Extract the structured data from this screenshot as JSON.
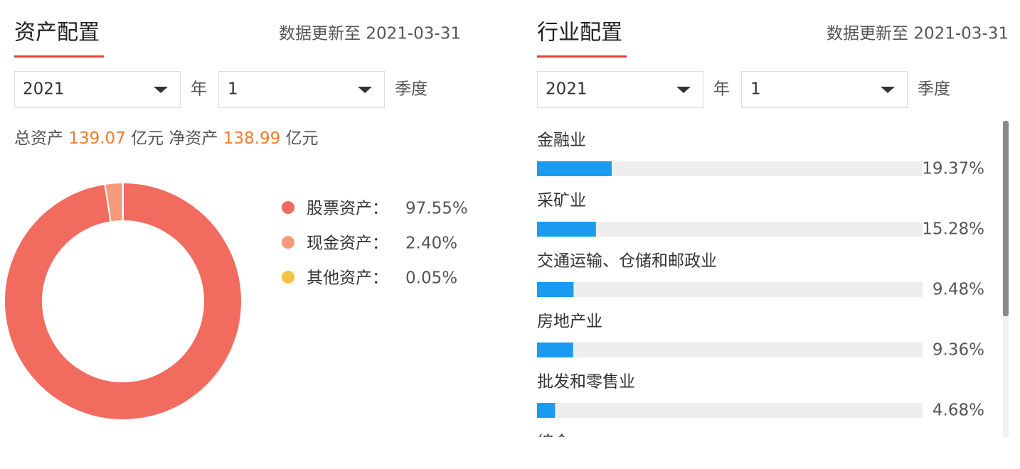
{
  "left": {
    "title": "资产配置",
    "update": "数据更新至 2021-03-31",
    "year": "2021",
    "year_unit": "年",
    "quarter": "1",
    "quarter_unit": "季度",
    "summary": {
      "total_label": "总资产",
      "total": "139.07",
      "total_unit": "亿元",
      "net_label": "净资产",
      "net": "138.99",
      "net_unit": "亿元"
    },
    "chart_data": {
      "type": "pie",
      "categories": [
        "股票资产：",
        "现金资产：",
        "其他资产："
      ],
      "values": [
        97.55,
        2.4,
        0.05
      ],
      "value_labels": [
        "97.55%",
        "2.40%",
        "0.05%"
      ],
      "colors": [
        "#f26b5f",
        "#f7997a",
        "#f5c242"
      ]
    }
  },
  "right": {
    "title": "行业配置",
    "update": "数据更新至 2021-03-31",
    "year": "2021",
    "year_unit": "年",
    "quarter": "1",
    "quarter_unit": "季度",
    "chart_data": {
      "type": "bar",
      "categories": [
        "金融业",
        "采矿业",
        "交通运输、仓储和邮政业",
        "房地产业",
        "批发和零售业",
        "综合"
      ],
      "values": [
        19.37,
        15.28,
        9.48,
        9.36,
        4.68,
        null
      ],
      "value_labels": [
        "19.37%",
        "15.28%",
        "9.48%",
        "9.36%",
        "4.68%",
        null
      ],
      "xlim": [
        0,
        100
      ],
      "color": "#1a9bf0"
    }
  }
}
